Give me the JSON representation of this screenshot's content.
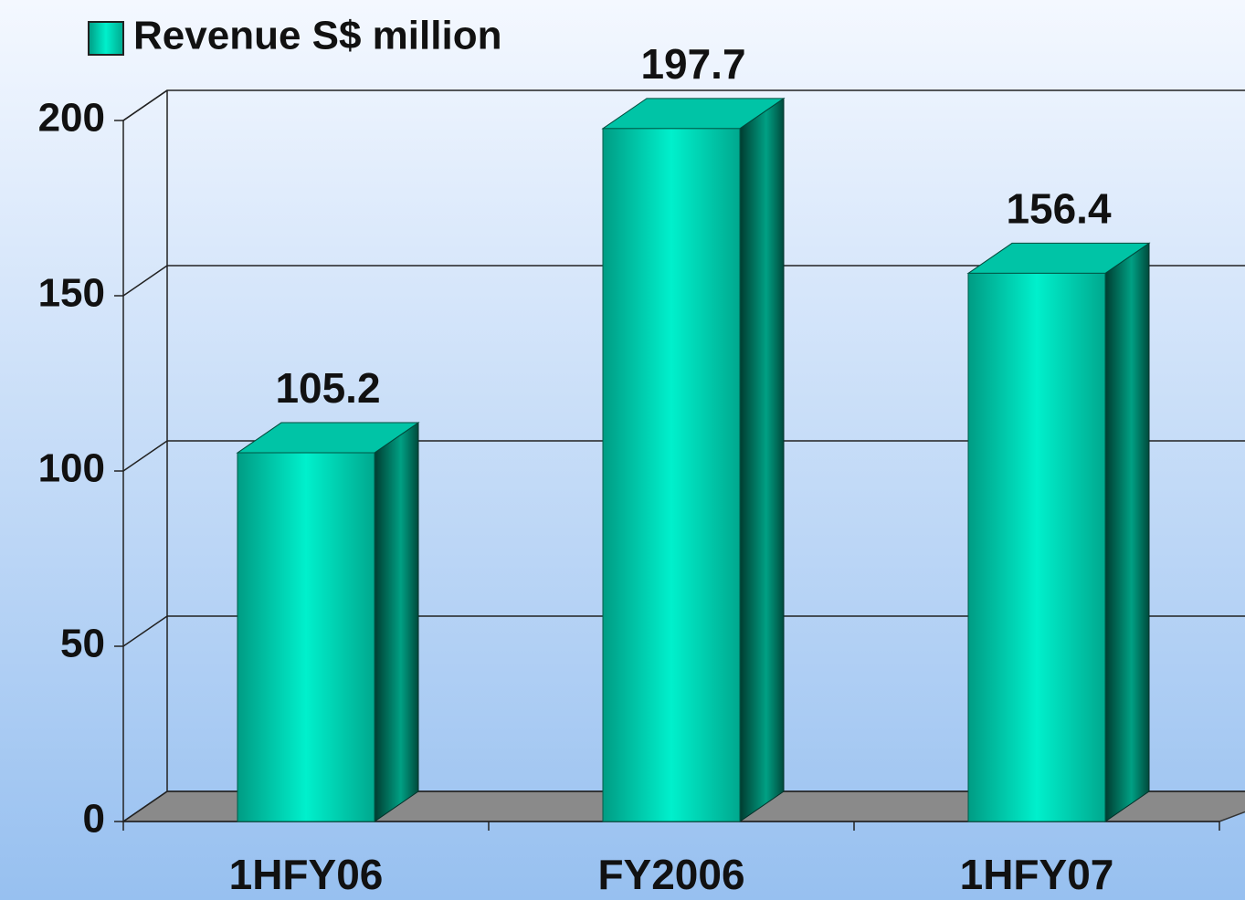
{
  "chart_data": {
    "type": "bar",
    "categories": [
      "1HFY06",
      "FY2006",
      "1HFY07"
    ],
    "series": [
      {
        "name": "Revenue S$ million",
        "color": "#00f0cc",
        "values": [
          105.2,
          197.7,
          156.4
        ]
      }
    ],
    "ylim": [
      0,
      200
    ],
    "yticks": [
      0,
      50,
      100,
      150,
      200
    ],
    "grid": true,
    "legend": "top-left"
  }
}
